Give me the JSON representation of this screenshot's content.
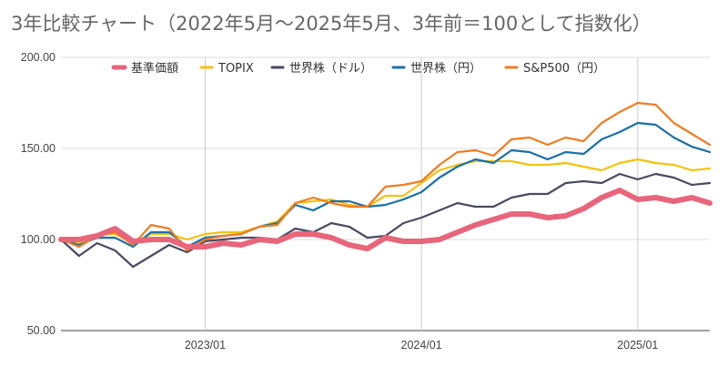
{
  "chart_data": {
    "type": "line",
    "title": "3年比較チャート（2022年5月～2025年5月、3年前＝100として指数化）",
    "xlabel": "",
    "ylabel": "",
    "ylim": [
      50,
      200
    ],
    "yticks": [
      "50.00",
      "100.00",
      "150.00",
      "200.00"
    ],
    "xticks": [
      "2023/01",
      "2024/01",
      "2025/01"
    ],
    "grid": true,
    "legend_position": "top",
    "x": [
      "2022/05",
      "2022/06",
      "2022/07",
      "2022/08",
      "2022/09",
      "2022/10",
      "2022/11",
      "2022/12",
      "2023/01",
      "2023/02",
      "2023/03",
      "2023/04",
      "2023/05",
      "2023/06",
      "2023/07",
      "2023/08",
      "2023/09",
      "2023/10",
      "2023/11",
      "2023/12",
      "2024/01",
      "2024/02",
      "2024/03",
      "2024/04",
      "2024/05",
      "2024/06",
      "2024/07",
      "2024/08",
      "2024/09",
      "2024/10",
      "2024/11",
      "2024/12",
      "2025/01",
      "2025/02",
      "2025/03",
      "2025/04",
      "2025/05"
    ],
    "series": [
      {
        "name": "基準価額",
        "color": "#e8657a",
        "values": [
          100,
          100,
          102,
          106,
          99,
          100,
          100,
          96,
          96,
          98,
          97,
          100,
          99,
          103,
          103,
          101,
          97,
          95,
          101,
          99,
          99,
          100,
          104,
          108,
          111,
          114,
          114,
          112,
          113,
          117,
          123,
          127,
          122,
          123,
          121,
          123,
          120
        ]
      },
      {
        "name": "TOPIX",
        "color": "#f4c20d",
        "values": [
          100,
          98,
          103,
          103,
          98,
          103,
          103,
          100,
          103,
          104,
          104,
          107,
          110,
          120,
          121,
          122,
          119,
          118,
          124,
          124,
          131,
          138,
          141,
          143,
          143,
          143,
          141,
          141,
          142,
          140,
          138,
          142,
          144,
          142,
          141,
          138,
          139
        ]
      },
      {
        "name": "世界株（ドル）",
        "color": "#4a4a62",
        "values": [
          100,
          91,
          98,
          94,
          85,
          91,
          97,
          93,
          99,
          100,
          101,
          101,
          100,
          106,
          104,
          109,
          107,
          101,
          102,
          109,
          112,
          116,
          120,
          118,
          118,
          123,
          125,
          125,
          131,
          132,
          131,
          136,
          133,
          136,
          134,
          130,
          131
        ]
      },
      {
        "name": "世界株（円）",
        "color": "#1a6fa8",
        "values": [
          100,
          97,
          101,
          101,
          96,
          104,
          104,
          96,
          101,
          102,
          103,
          107,
          109,
          119,
          116,
          121,
          121,
          118,
          119,
          122,
          126,
          134,
          140,
          144,
          142,
          149,
          148,
          144,
          148,
          147,
          155,
          159,
          164,
          163,
          156,
          151,
          148
        ]
      },
      {
        "name": "S&P500（円）",
        "color": "#f07c22",
        "values": [
          100,
          96,
          102,
          104,
          97,
          108,
          106,
          94,
          100,
          102,
          103,
          107,
          108,
          120,
          123,
          120,
          118,
          118,
          129,
          130,
          132,
          141,
          148,
          149,
          146,
          155,
          156,
          152,
          156,
          154,
          164,
          170,
          175,
          174,
          164,
          158,
          152
        ]
      }
    ]
  }
}
